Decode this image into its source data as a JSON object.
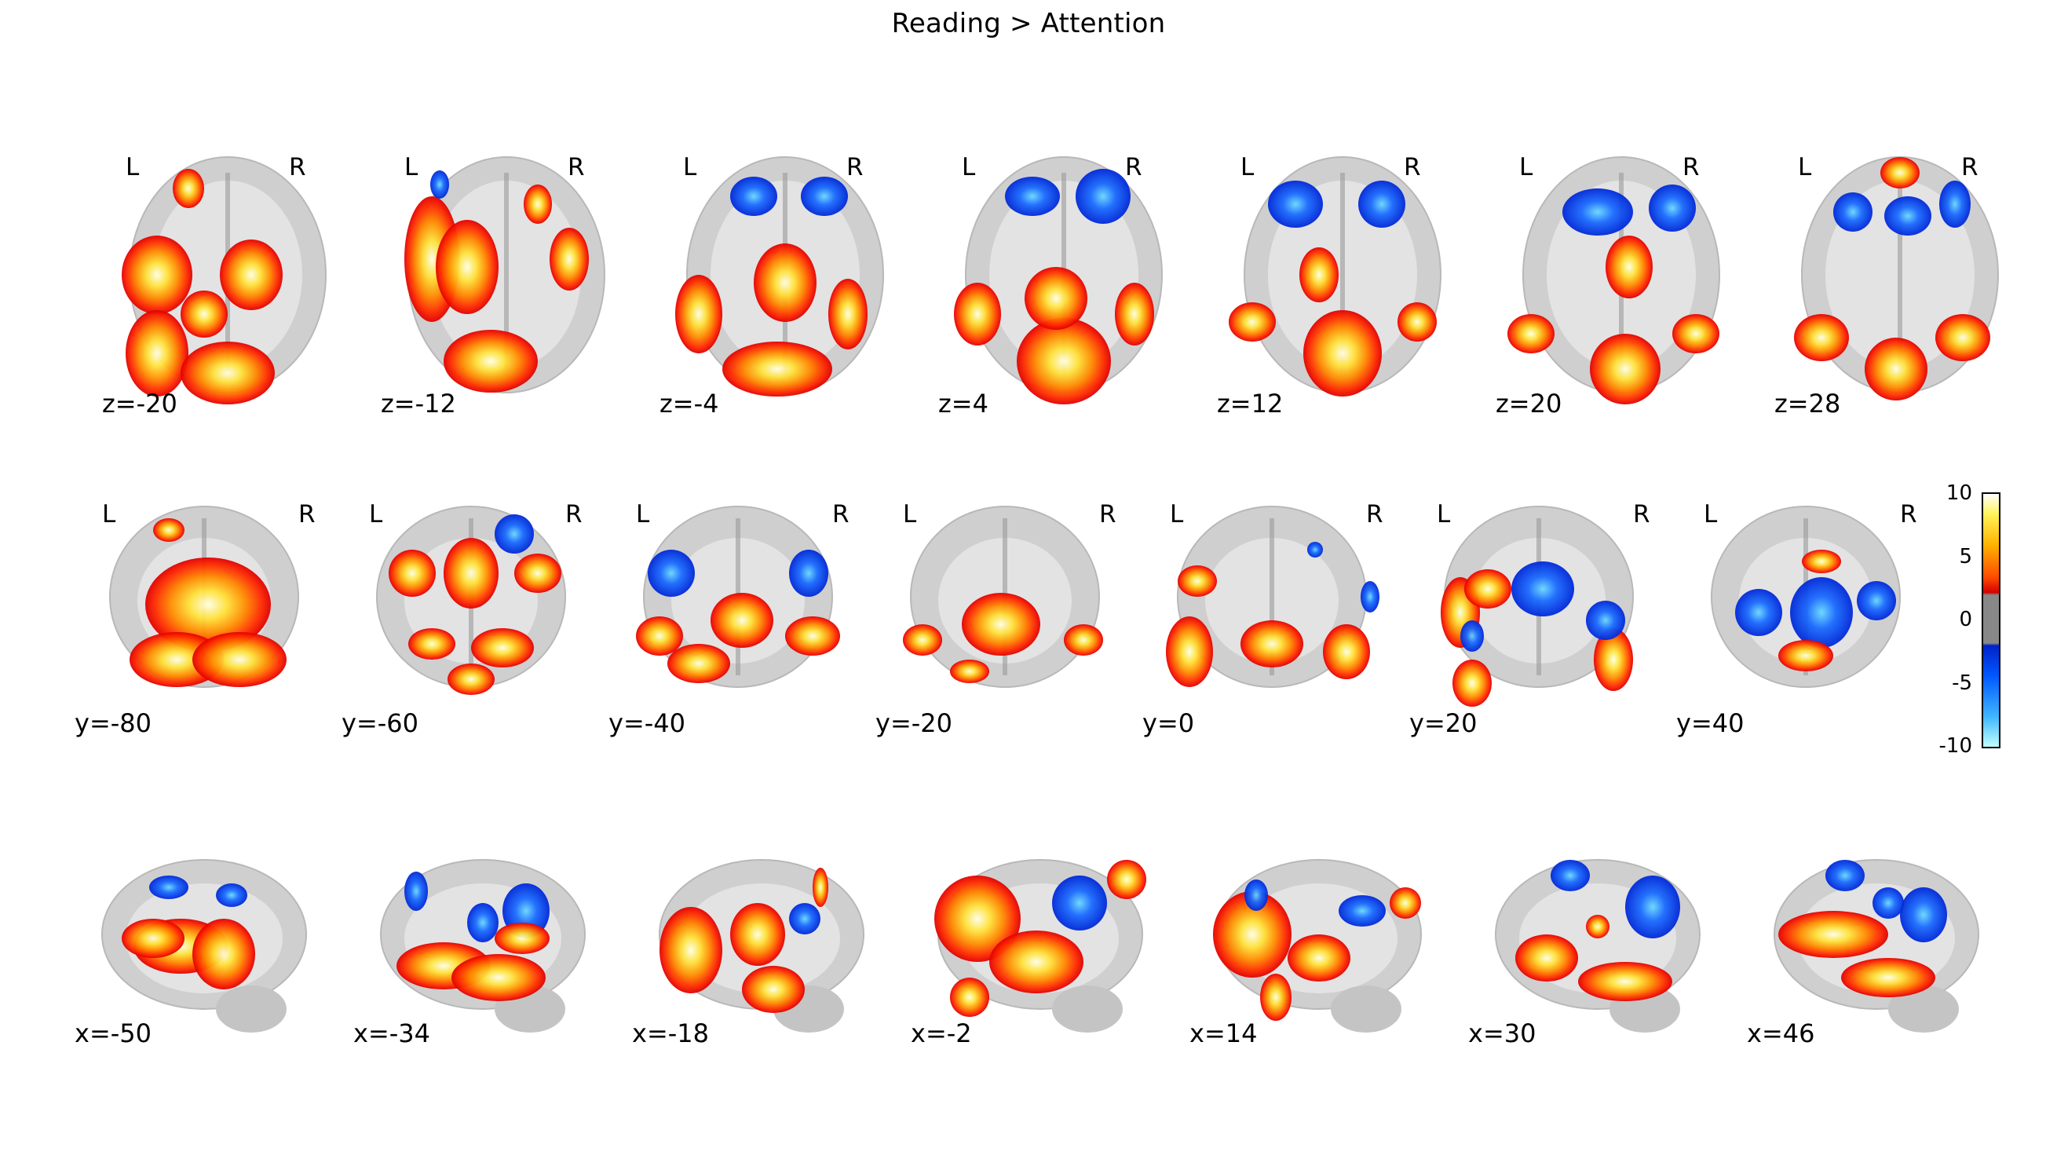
{
  "title": "Reading > Attention",
  "orientation_labels": {
    "left": "L",
    "right": "R"
  },
  "rows": [
    {
      "view": "axial",
      "slices": [
        "z=-20",
        "z=-12",
        "z=-4",
        "z=4",
        "z=12",
        "z=20",
        "z=28"
      ]
    },
    {
      "view": "coronal",
      "slices": [
        "y=-80",
        "y=-60",
        "y=-40",
        "y=-20",
        "y=0",
        "y=20",
        "y=40"
      ]
    },
    {
      "view": "sagittal",
      "slices": [
        "x=-50",
        "x=-34",
        "x=-18",
        "x=-2",
        "x=14",
        "x=30",
        "x=46"
      ]
    }
  ],
  "colorbar": {
    "ticks": [
      "10",
      "5",
      "0",
      "-5",
      "-10"
    ],
    "colors": {
      "positive_high": "#fffff0",
      "positive_mid": "#ffb400",
      "positive_low": "#d40000",
      "threshold_gray": "#888888",
      "negative_low": "#0022c8",
      "negative_high": "#bfffff"
    }
  }
}
